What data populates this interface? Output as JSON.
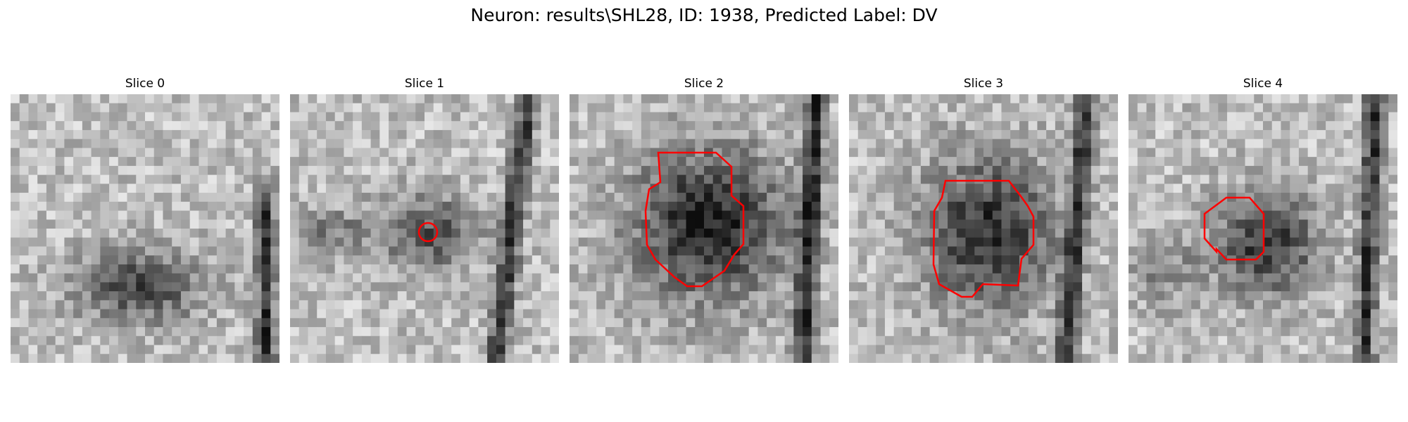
{
  "figure": {
    "title": "Neuron: results\\SHL28, ID: 1938, Predicted Label: DV"
  },
  "contour_color": "#ff0000",
  "panels": [
    {
      "title": "Slice 0",
      "has_contour": false
    },
    {
      "title": "Slice 1",
      "has_contour": true
    },
    {
      "title": "Slice 2",
      "has_contour": true
    },
    {
      "title": "Slice 3",
      "has_contour": true
    },
    {
      "title": "Slice 4",
      "has_contour": true
    }
  ]
}
